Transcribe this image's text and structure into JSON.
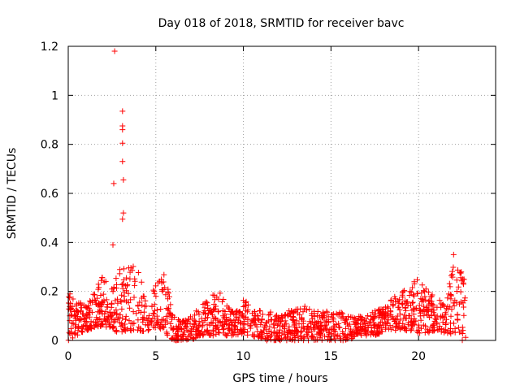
{
  "chart_data": {
    "type": "scatter",
    "title": "Day 018 of 2018, SRMTID for receiver bavc",
    "xlabel": "GPS time / hours",
    "ylabel": "SRMTID / TECUs",
    "xlim": [
      0,
      24.4
    ],
    "ylim": [
      0,
      1.2
    ],
    "x_ticks": [
      0,
      5,
      10,
      15,
      20
    ],
    "x_tick_labels": [
      "0",
      "5",
      "10",
      "15",
      "20"
    ],
    "y_ticks": [
      0,
      0.2,
      0.4,
      0.6,
      0.8,
      1.0,
      1.2
    ],
    "y_tick_labels": [
      "0",
      "0.2",
      "0.4",
      "0.6",
      "0.8",
      "1",
      "1.2"
    ],
    "grid": true,
    "marker": "plus",
    "color": "#ff0000",
    "outliers": [
      {
        "x": 2.65,
        "y": 1.18
      },
      {
        "x": 2.6,
        "y": 0.64
      },
      {
        "x": 3.1,
        "y": 0.935
      },
      {
        "x": 3.1,
        "y": 0.875
      },
      {
        "x": 3.1,
        "y": 0.86
      },
      {
        "x": 3.1,
        "y": 0.805
      },
      {
        "x": 3.1,
        "y": 0.73
      },
      {
        "x": 3.15,
        "y": 0.655
      },
      {
        "x": 3.15,
        "y": 0.52
      },
      {
        "x": 3.1,
        "y": 0.495
      },
      {
        "x": 2.55,
        "y": 0.39
      },
      {
        "x": 22.0,
        "y": 0.35
      }
    ],
    "envelope": {
      "x_hours": [
        0,
        0.5,
        1.0,
        1.5,
        2.0,
        2.5,
        3.0,
        3.5,
        4.0,
        4.5,
        5.0,
        5.5,
        6.0,
        6.5,
        7.0,
        7.5,
        8.0,
        8.5,
        9.0,
        9.5,
        10.0,
        10.5,
        11.0,
        11.5,
        12.0,
        12.5,
        13.0,
        13.5,
        14.0,
        14.5,
        15.0,
        15.5,
        16.0,
        16.5,
        17.0,
        17.5,
        18.0,
        18.5,
        19.0,
        19.5,
        20.0,
        20.5,
        21.0,
        21.5,
        22.0,
        22.5,
        22.7
      ],
      "typical_max": [
        0.2,
        0.16,
        0.15,
        0.2,
        0.27,
        0.22,
        0.3,
        0.3,
        0.32,
        0.12,
        0.25,
        0.28,
        0.1,
        0.08,
        0.1,
        0.14,
        0.18,
        0.22,
        0.15,
        0.12,
        0.17,
        0.14,
        0.12,
        0.12,
        0.1,
        0.12,
        0.13,
        0.14,
        0.12,
        0.12,
        0.13,
        0.12,
        0.1,
        0.1,
        0.1,
        0.12,
        0.14,
        0.18,
        0.2,
        0.22,
        0.27,
        0.2,
        0.18,
        0.16,
        0.32,
        0.28,
        0.24
      ],
      "typical_min": [
        0.0,
        0.02,
        0.04,
        0.05,
        0.06,
        0.04,
        0.03,
        0.04,
        0.04,
        0.03,
        0.05,
        0.03,
        0.0,
        0.0,
        0.0,
        0.02,
        0.02,
        0.02,
        0.02,
        0.02,
        0.02,
        0.02,
        0.0,
        0.0,
        0.0,
        0.0,
        0.0,
        0.0,
        0.0,
        0.0,
        0.0,
        0.0,
        0.0,
        0.02,
        0.02,
        0.02,
        0.03,
        0.04,
        0.04,
        0.04,
        0.03,
        0.03,
        0.04,
        0.03,
        0.02,
        0.0,
        0.0
      ]
    }
  }
}
